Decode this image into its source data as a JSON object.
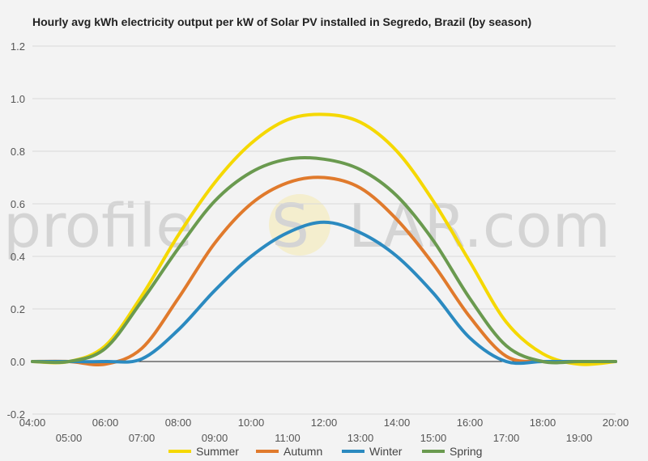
{
  "watermark": {
    "text_left": "profile",
    "text_mid": "S",
    "text_right": "LAR.com"
  },
  "chart_data": {
    "type": "line",
    "title": "Hourly avg kWh electricity output per kW of Solar PV installed in Segredo, Brazil (by season)",
    "xlabel": "",
    "ylabel": "",
    "xlim": [
      4,
      20
    ],
    "ylim": [
      -0.2,
      1.2
    ],
    "y_ticks": [
      -0.2,
      0.0,
      0.2,
      0.4,
      0.6,
      0.8,
      1.0,
      1.2
    ],
    "y_tick_labels": [
      "-0.2",
      "0.0",
      "0.2",
      "0.4",
      "0.6",
      "0.8",
      "1.0",
      "1.2"
    ],
    "x_ticks_upper": [
      "04:00",
      "06:00",
      "08:00",
      "10:00",
      "12:00",
      "14:00",
      "16:00",
      "18:00",
      "20:00"
    ],
    "x_ticks_lower": [
      "05:00",
      "07:00",
      "09:00",
      "11:00",
      "13:00",
      "15:00",
      "17:00",
      "19:00"
    ],
    "grid": true,
    "legend_position": "bottom",
    "x": [
      "04:00",
      "05:00",
      "06:00",
      "07:00",
      "08:00",
      "09:00",
      "10:00",
      "11:00",
      "12:00",
      "13:00",
      "14:00",
      "15:00",
      "16:00",
      "17:00",
      "18:00",
      "19:00",
      "20:00"
    ],
    "series": [
      {
        "name": "Summer",
        "color": "#f5d800",
        "values": [
          0.0,
          0.0,
          0.06,
          0.25,
          0.48,
          0.68,
          0.83,
          0.92,
          0.94,
          0.91,
          0.8,
          0.61,
          0.38,
          0.15,
          0.03,
          -0.01,
          0.0
        ]
      },
      {
        "name": "Autumn",
        "color": "#e07a2c",
        "values": [
          0.0,
          0.0,
          -0.01,
          0.05,
          0.24,
          0.45,
          0.6,
          0.68,
          0.7,
          0.66,
          0.54,
          0.37,
          0.17,
          0.02,
          0.0,
          0.0,
          0.0
        ]
      },
      {
        "name": "Winter",
        "color": "#2b8ac0",
        "values": [
          0.0,
          0.0,
          0.0,
          0.01,
          0.12,
          0.27,
          0.4,
          0.49,
          0.53,
          0.49,
          0.4,
          0.26,
          0.09,
          0.0,
          0.0,
          0.0,
          0.0
        ]
      },
      {
        "name": "Spring",
        "color": "#6a9a4f",
        "values": [
          0.0,
          0.0,
          0.05,
          0.23,
          0.43,
          0.61,
          0.72,
          0.77,
          0.77,
          0.73,
          0.63,
          0.46,
          0.24,
          0.06,
          0.0,
          0.0,
          0.0
        ]
      }
    ]
  }
}
